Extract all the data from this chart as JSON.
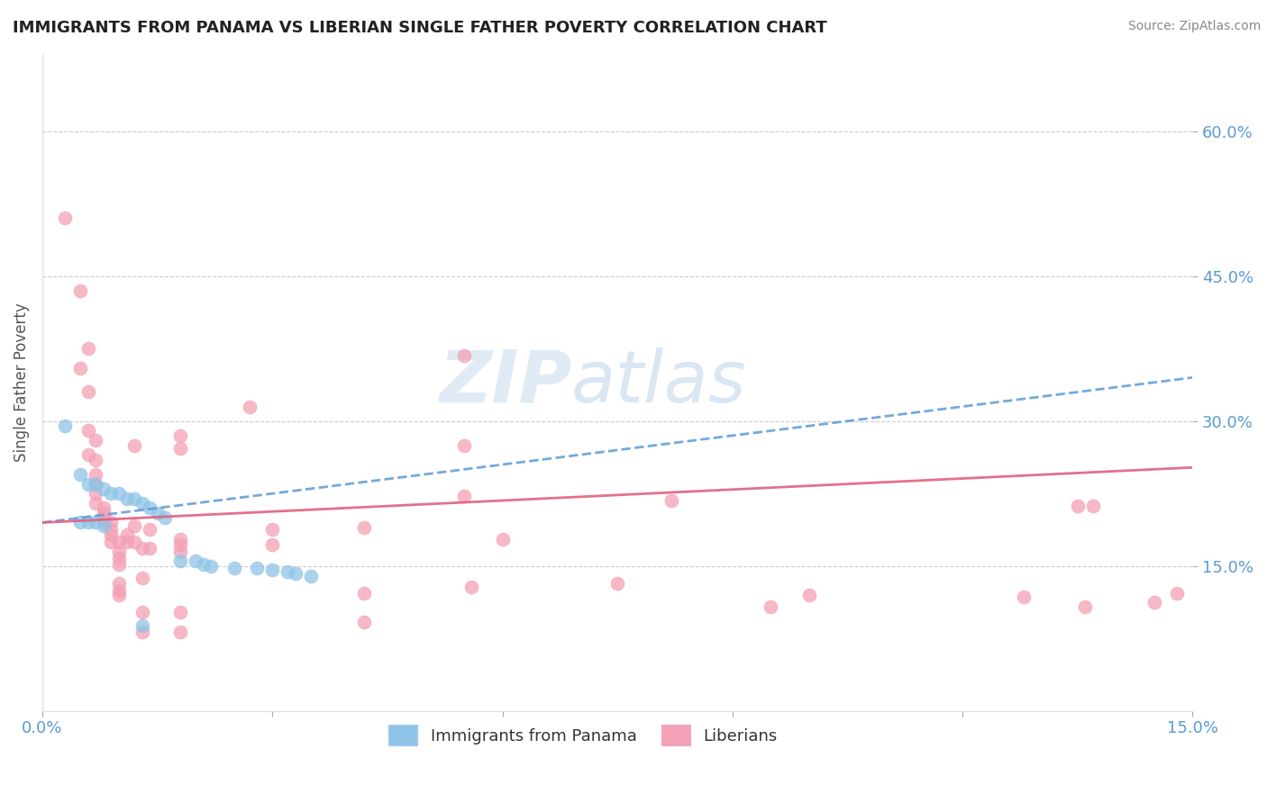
{
  "title": "IMMIGRANTS FROM PANAMA VS LIBERIAN SINGLE FATHER POVERTY CORRELATION CHART",
  "source": "Source: ZipAtlas.com",
  "ylabel": "Single Father Poverty",
  "xlim": [
    0.0,
    0.15
  ],
  "ylim": [
    0.0,
    0.68
  ],
  "yticks_right": [
    0.15,
    0.3,
    0.45,
    0.6
  ],
  "ytick_labels_right": [
    "15.0%",
    "30.0%",
    "45.0%",
    "60.0%"
  ],
  "blue_color": "#8ec4e8",
  "pink_color": "#f4a0b5",
  "blue_line_color": "#5b9bd5",
  "pink_line_color": "#e06080",
  "watermark_zip": "ZIP",
  "watermark_atlas": "atlas",
  "blue_trend_x": [
    0.0,
    0.15
  ],
  "blue_trend_y": [
    0.195,
    0.345
  ],
  "pink_trend_x": [
    0.0,
    0.15
  ],
  "pink_trend_y": [
    0.195,
    0.252
  ],
  "blue_dots": [
    [
      0.003,
      0.295
    ],
    [
      0.005,
      0.245
    ],
    [
      0.006,
      0.235
    ],
    [
      0.007,
      0.235
    ],
    [
      0.008,
      0.23
    ],
    [
      0.009,
      0.225
    ],
    [
      0.01,
      0.225
    ],
    [
      0.011,
      0.22
    ],
    [
      0.012,
      0.22
    ],
    [
      0.013,
      0.215
    ],
    [
      0.014,
      0.21
    ],
    [
      0.015,
      0.205
    ],
    [
      0.016,
      0.2
    ],
    [
      0.018,
      0.155
    ],
    [
      0.02,
      0.155
    ],
    [
      0.021,
      0.152
    ],
    [
      0.022,
      0.15
    ],
    [
      0.025,
      0.148
    ],
    [
      0.028,
      0.148
    ],
    [
      0.03,
      0.146
    ],
    [
      0.032,
      0.144
    ],
    [
      0.033,
      0.142
    ],
    [
      0.035,
      0.14
    ],
    [
      0.005,
      0.195
    ],
    [
      0.006,
      0.195
    ],
    [
      0.007,
      0.195
    ],
    [
      0.008,
      0.192
    ],
    [
      0.013,
      0.088
    ]
  ],
  "pink_dots": [
    [
      0.003,
      0.51
    ],
    [
      0.005,
      0.435
    ],
    [
      0.005,
      0.355
    ],
    [
      0.006,
      0.375
    ],
    [
      0.006,
      0.33
    ],
    [
      0.006,
      0.29
    ],
    [
      0.006,
      0.265
    ],
    [
      0.007,
      0.28
    ],
    [
      0.007,
      0.26
    ],
    [
      0.007,
      0.245
    ],
    [
      0.007,
      0.235
    ],
    [
      0.007,
      0.225
    ],
    [
      0.007,
      0.215
    ],
    [
      0.008,
      0.21
    ],
    [
      0.008,
      0.205
    ],
    [
      0.008,
      0.2
    ],
    [
      0.008,
      0.195
    ],
    [
      0.009,
      0.195
    ],
    [
      0.009,
      0.188
    ],
    [
      0.009,
      0.182
    ],
    [
      0.009,
      0.175
    ],
    [
      0.01,
      0.175
    ],
    [
      0.01,
      0.165
    ],
    [
      0.01,
      0.158
    ],
    [
      0.01,
      0.152
    ],
    [
      0.01,
      0.132
    ],
    [
      0.01,
      0.125
    ],
    [
      0.01,
      0.12
    ],
    [
      0.011,
      0.182
    ],
    [
      0.011,
      0.175
    ],
    [
      0.012,
      0.275
    ],
    [
      0.012,
      0.192
    ],
    [
      0.012,
      0.175
    ],
    [
      0.013,
      0.168
    ],
    [
      0.013,
      0.138
    ],
    [
      0.013,
      0.102
    ],
    [
      0.013,
      0.082
    ],
    [
      0.014,
      0.188
    ],
    [
      0.014,
      0.168
    ],
    [
      0.018,
      0.285
    ],
    [
      0.018,
      0.272
    ],
    [
      0.018,
      0.178
    ],
    [
      0.018,
      0.172
    ],
    [
      0.018,
      0.165
    ],
    [
      0.018,
      0.102
    ],
    [
      0.018,
      0.082
    ],
    [
      0.027,
      0.315
    ],
    [
      0.03,
      0.188
    ],
    [
      0.03,
      0.172
    ],
    [
      0.042,
      0.19
    ],
    [
      0.042,
      0.122
    ],
    [
      0.042,
      0.092
    ],
    [
      0.055,
      0.368
    ],
    [
      0.055,
      0.275
    ],
    [
      0.055,
      0.222
    ],
    [
      0.056,
      0.128
    ],
    [
      0.06,
      0.178
    ],
    [
      0.075,
      0.132
    ],
    [
      0.082,
      0.218
    ],
    [
      0.095,
      0.108
    ],
    [
      0.128,
      0.118
    ],
    [
      0.135,
      0.212
    ],
    [
      0.136,
      0.108
    ],
    [
      0.137,
      0.212
    ],
    [
      0.148,
      0.122
    ],
    [
      0.145,
      0.113
    ],
    [
      0.1,
      0.12
    ]
  ]
}
